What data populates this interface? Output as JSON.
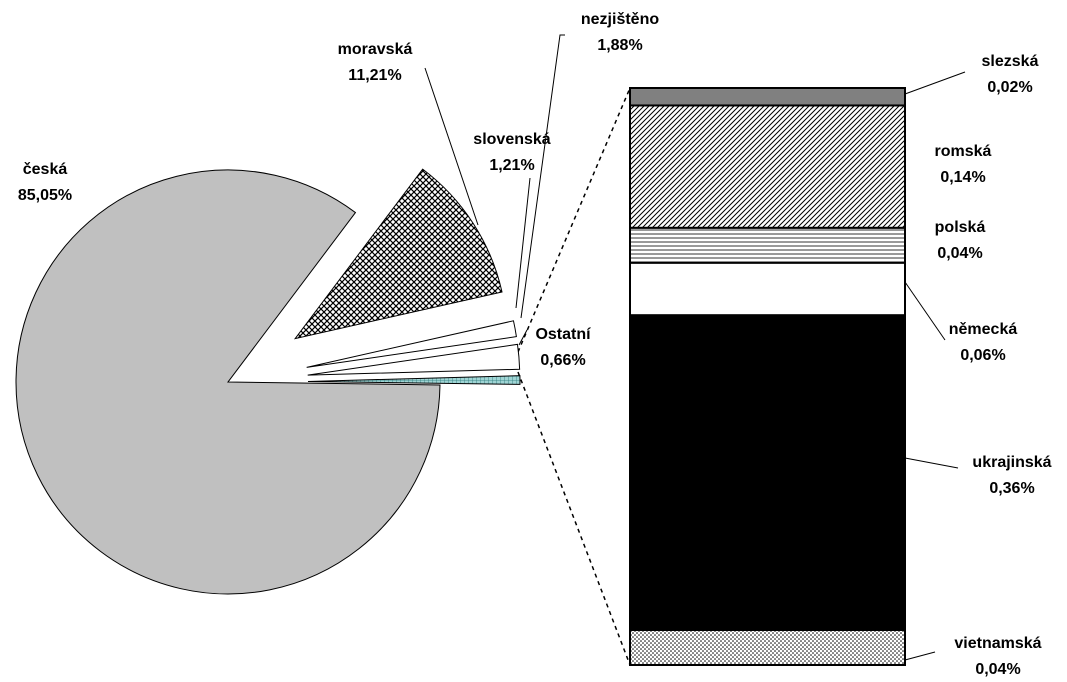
{
  "chart_data": [
    {
      "type": "pie",
      "categories": [
        "česká",
        "moravská",
        "slovenská",
        "nezjištěno",
        "Ostatní"
      ],
      "values": [
        85.05,
        11.21,
        1.21,
        1.88,
        0.66
      ],
      "value_labels": [
        "85,05%",
        "11,21%",
        "1,21%",
        "1,88%",
        "0,66%"
      ],
      "colors": [
        "#c0c0c0",
        "#000000",
        "#ffffff",
        "#ffffff",
        "#66b2b2"
      ]
    },
    {
      "type": "bar",
      "stacked": true,
      "categories": [
        "slezská",
        "romská",
        "polská",
        "německá",
        "ukrajinská",
        "vietnamská"
      ],
      "values": [
        0.02,
        0.14,
        0.04,
        0.06,
        0.36,
        0.04
      ],
      "value_labels": [
        "0,02%",
        "0,14%",
        "0,04%",
        "0,06%",
        "0,36%",
        "0,04%"
      ],
      "colors": [
        "#808080",
        "#000000",
        "#000000",
        "#ffffff",
        "#000000",
        "#000000"
      ]
    }
  ]
}
